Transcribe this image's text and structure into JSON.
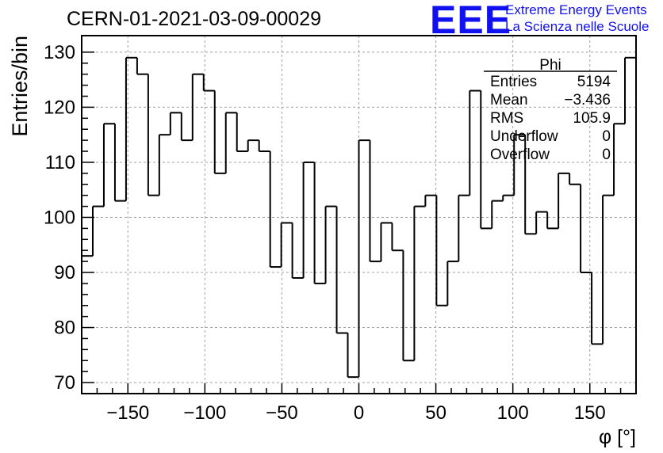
{
  "title": "CERN-01-2021-03-09-00029",
  "logo": {
    "text": "EEE",
    "line1": "Extreme Energy Events",
    "line2": "La Scienza nelle Scuole",
    "color": "#1010f0"
  },
  "stats": {
    "title": "Phi",
    "rows": [
      {
        "key": "Entries",
        "value": "5194"
      },
      {
        "key": "Mean",
        "value": "−3.436"
      },
      {
        "key": "RMS",
        "value": "105.9"
      },
      {
        "key": "Underflow",
        "value": "0"
      },
      {
        "key": "Overflow",
        "value": "0"
      }
    ]
  },
  "chart_data": {
    "type": "bar",
    "style": "step-histogram",
    "xlabel": "φ [°]",
    "ylabel": "Entries/bin",
    "xlim": [
      -180,
      180
    ],
    "ylim": [
      68,
      133
    ],
    "bin_width": 7.2,
    "xticks": [
      -150,
      -100,
      -50,
      0,
      50,
      100,
      150
    ],
    "xtick_labels": [
      "−150",
      "−100",
      "−50",
      "0",
      "50",
      "100",
      "150"
    ],
    "yticks": [
      70,
      80,
      90,
      100,
      110,
      120,
      130
    ],
    "ytick_labels": [
      "70",
      "80",
      "90",
      "100",
      "110",
      "120",
      "130"
    ],
    "grid": true,
    "values": [
      93,
      102,
      117,
      103,
      129,
      126,
      104,
      115,
      119,
      114,
      126,
      123,
      108,
      119,
      112,
      114,
      112,
      91,
      99,
      89,
      110,
      88,
      102,
      79,
      71,
      114,
      92,
      99,
      94,
      74,
      102,
      104,
      84,
      92,
      104,
      123,
      98,
      103,
      104,
      115,
      97,
      101,
      98,
      108,
      106,
      90,
      77,
      104,
      117,
      129
    ]
  }
}
